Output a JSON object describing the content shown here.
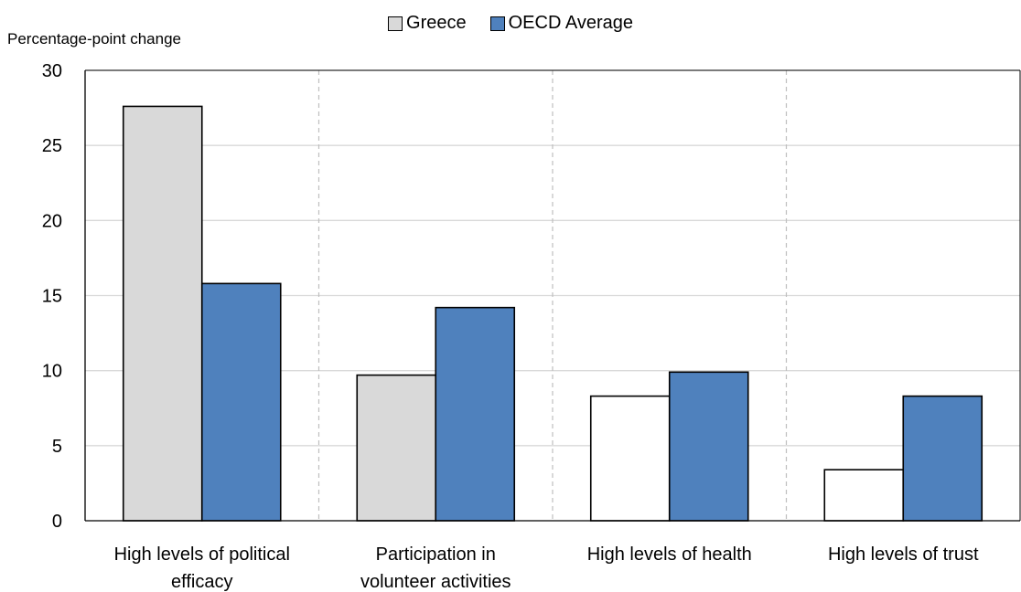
{
  "chart_data": {
    "type": "bar",
    "ylabel": "Percentage-point change",
    "ylim": [
      0,
      30
    ],
    "yticks": [
      0,
      5,
      10,
      15,
      20,
      25,
      30
    ],
    "grid": true,
    "legend_position": "top-center",
    "categories": [
      {
        "lines": [
          "High levels of political",
          "efficacy"
        ]
      },
      {
        "lines": [
          "Participation in",
          "volunteer activities"
        ]
      },
      {
        "lines": [
          "High levels of health"
        ]
      },
      {
        "lines": [
          "High levels of trust"
        ]
      }
    ],
    "series": [
      {
        "name": "Greece",
        "color": "#d9d9d9",
        "values": [
          27.6,
          9.7,
          8.3,
          3.4
        ],
        "bar_colors": [
          "#d9d9d9",
          "#d9d9d9",
          "#ffffff",
          "#ffffff"
        ]
      },
      {
        "name": "OECD Average",
        "color": "#4f81bd",
        "values": [
          15.8,
          14.2,
          9.9,
          8.3
        ],
        "bar_colors": [
          "#4f81bd",
          "#4f81bd",
          "#4f81bd",
          "#4f81bd"
        ]
      }
    ]
  }
}
